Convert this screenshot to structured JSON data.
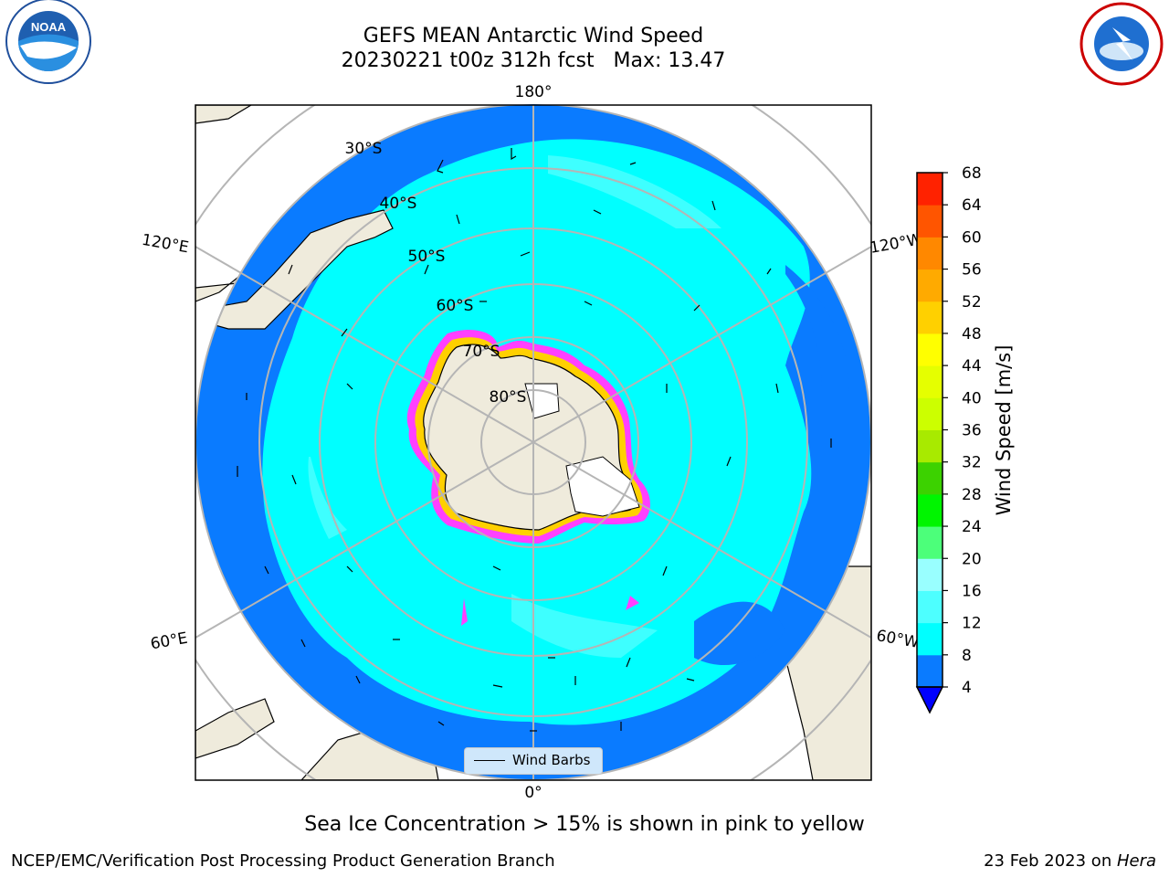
{
  "header": {
    "title_line1": "GEFS MEAN Antarctic Wind Speed",
    "title_line2": "20230221 t00z 312h fcst   Max: 13.47"
  },
  "logos": {
    "left": "NOAA",
    "right": "NATIONAL WEATHER SERVICE"
  },
  "map": {
    "longitude_labels": {
      "top": "180°",
      "bottom": "0°",
      "upper_left": "120°E",
      "upper_right": "120°W",
      "lower_left": "60°E",
      "lower_right": "60°W"
    },
    "latitude_labels": [
      "30°S",
      "40°S",
      "50°S",
      "60°S",
      "70°S",
      "80°S"
    ],
    "legend_label": "Wind Barbs"
  },
  "colorbar": {
    "label": "Wind Speed [m/s]",
    "ticks": [
      "4",
      "8",
      "12",
      "16",
      "20",
      "24",
      "28",
      "32",
      "36",
      "40",
      "44",
      "48",
      "52",
      "56",
      "60",
      "64",
      "68"
    ],
    "colors": [
      "#0a7bff",
      "#00ffff",
      "#4dffff",
      "#99ffff",
      "#4cff7a",
      "#00f500",
      "#3cd200",
      "#a8ea00",
      "#ccff00",
      "#e5ff00",
      "#ffff00",
      "#ffd000",
      "#ffaa00",
      "#ff8800",
      "#ff5500",
      "#ff2200",
      "#ff0000"
    ],
    "extend_color": "#0000ff"
  },
  "caption": "Sea Ice Concentration > 15% is shown in pink to yellow",
  "footer": {
    "left": "NCEP/EMC/Verification Post Processing Product Generation Branch",
    "right_prefix": "23 Feb 2023 on ",
    "right_host": "Hera"
  }
}
